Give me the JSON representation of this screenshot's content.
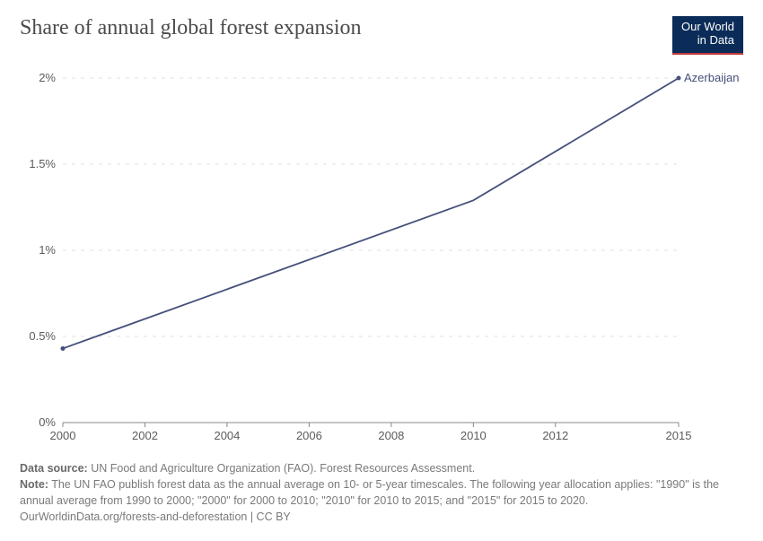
{
  "header": {
    "title": "Share of annual global forest expansion",
    "logo_line1": "Our World",
    "logo_line2": "in Data"
  },
  "chart": {
    "type": "line",
    "background_color": "#ffffff",
    "grid_color": "#e2e2e2",
    "axis_color": "#888888",
    "tick_label_color": "#5b5b5b",
    "tick_fontsize": 13,
    "x": {
      "min": 2000,
      "max": 2015,
      "ticks": [
        2000,
        2002,
        2004,
        2006,
        2008,
        2010,
        2012,
        2015
      ]
    },
    "y": {
      "min": 0,
      "max": 2,
      "ticks": [
        0,
        0.5,
        1,
        1.5,
        2
      ],
      "tick_labels": [
        "0%",
        "0.5%",
        "1%",
        "1.5%",
        "2%"
      ]
    },
    "series": [
      {
        "name": "Azerbaijan",
        "label": "Azerbaijan",
        "color": "#46507a",
        "line_width": 1.8,
        "points": [
          {
            "x": 2000,
            "y": 0.43
          },
          {
            "x": 2010,
            "y": 1.29
          },
          {
            "x": 2015,
            "y": 2.0
          }
        ]
      }
    ]
  },
  "footer": {
    "source_label": "Data source:",
    "source_text": "UN Food and Agriculture Organization (FAO). Forest Resources Assessment.",
    "note_label": "Note:",
    "note_text": "The UN FAO publish forest data as the annual average on 10- or 5-year timescales. The following year allocation applies: \"1990\" is the annual average from 1990 to 2000; \"2000\" for 2000 to 2010; \"2010\" for 2010 to 2015; and \"2015\" for 2015 to 2020.",
    "attribution": "OurWorldinData.org/forests-and-deforestation | CC BY"
  }
}
